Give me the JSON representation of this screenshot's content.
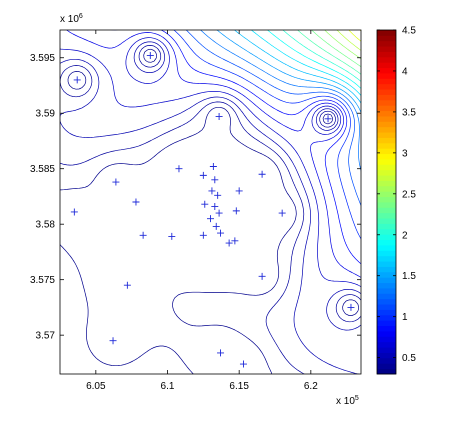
{
  "chart_data": {
    "type": "contour",
    "title": "",
    "xlabel": "",
    "ylabel": "",
    "x_exponent_label": "x 10",
    "x_exponent_power": "5",
    "y_exponent_label": "x 10",
    "y_exponent_power": "6",
    "xlim": [
      6.025,
      6.235
    ],
    "ylim": [
      3.5665,
      3.5975
    ],
    "x_ticks": [
      {
        "value": 6.05,
        "label": "6.05"
      },
      {
        "value": 6.1,
        "label": "6.1"
      },
      {
        "value": 6.15,
        "label": "6.15"
      },
      {
        "value": 6.2,
        "label": "6.2"
      }
    ],
    "y_ticks": [
      {
        "value": 3.57,
        "label": "3.57"
      },
      {
        "value": 3.575,
        "label": "3.575"
      },
      {
        "value": 3.58,
        "label": "3.58"
      },
      {
        "value": 3.585,
        "label": "3.585"
      },
      {
        "value": 3.59,
        "label": "3.59"
      },
      {
        "value": 3.595,
        "label": "3.595"
      }
    ],
    "colorbar": {
      "colormap": "jet",
      "range": [
        0.3,
        4.5
      ],
      "ticks": [
        {
          "value": 0.5,
          "label": "0.5"
        },
        {
          "value": 1.0,
          "label": "1"
        },
        {
          "value": 1.5,
          "label": "1.5"
        },
        {
          "value": 2.0,
          "label": "2"
        },
        {
          "value": 2.5,
          "label": "2.5"
        },
        {
          "value": 3.0,
          "label": "3"
        },
        {
          "value": 3.5,
          "label": "3.5"
        },
        {
          "value": 4.0,
          "label": "4"
        },
        {
          "value": 4.5,
          "label": "4.5"
        }
      ]
    },
    "contour_levels": [
      0.35,
      0.42,
      0.5,
      0.6,
      0.72,
      0.85,
      1.0,
      1.15,
      1.3,
      1.45,
      1.6,
      1.75,
      1.9,
      2.05,
      2.2,
      2.35,
      2.5,
      2.65,
      2.8,
      2.95,
      3.1,
      3.25,
      3.4,
      3.55,
      3.7,
      3.85,
      4.0,
      4.15,
      4.3,
      4.45
    ],
    "stations": [
      {
        "x": 6.037,
        "y": 3.593
      },
      {
        "x": 6.088,
        "y": 3.5952
      },
      {
        "x": 6.136,
        "y": 3.5897
      },
      {
        "x": 6.212,
        "y": 3.5895
      },
      {
        "x": 6.035,
        "y": 3.5811
      },
      {
        "x": 6.064,
        "y": 3.5838
      },
      {
        "x": 6.078,
        "y": 3.582
      },
      {
        "x": 6.108,
        "y": 3.585
      },
      {
        "x": 6.125,
        "y": 3.5844
      },
      {
        "x": 6.132,
        "y": 3.5852
      },
      {
        "x": 6.133,
        "y": 3.584
      },
      {
        "x": 6.131,
        "y": 3.583
      },
      {
        "x": 6.135,
        "y": 3.5826
      },
      {
        "x": 6.126,
        "y": 3.5818
      },
      {
        "x": 6.133,
        "y": 3.5816
      },
      {
        "x": 6.136,
        "y": 3.581
      },
      {
        "x": 6.13,
        "y": 3.5805
      },
      {
        "x": 6.134,
        "y": 3.5798
      },
      {
        "x": 6.125,
        "y": 3.579
      },
      {
        "x": 6.137,
        "y": 3.5792
      },
      {
        "x": 6.148,
        "y": 3.5812
      },
      {
        "x": 6.15,
        "y": 3.583
      },
      {
        "x": 6.166,
        "y": 3.5845
      },
      {
        "x": 6.18,
        "y": 3.581
      },
      {
        "x": 6.083,
        "y": 3.579
      },
      {
        "x": 6.103,
        "y": 3.5789
      },
      {
        "x": 6.147,
        "y": 3.5785
      },
      {
        "x": 6.143,
        "y": 3.5783
      },
      {
        "x": 6.166,
        "y": 3.5753
      },
      {
        "x": 6.072,
        "y": 3.5745
      },
      {
        "x": 6.228,
        "y": 3.5725
      },
      {
        "x": 6.062,
        "y": 3.5695
      },
      {
        "x": 6.137,
        "y": 3.5684
      },
      {
        "x": 6.153,
        "y": 3.5674
      }
    ]
  }
}
